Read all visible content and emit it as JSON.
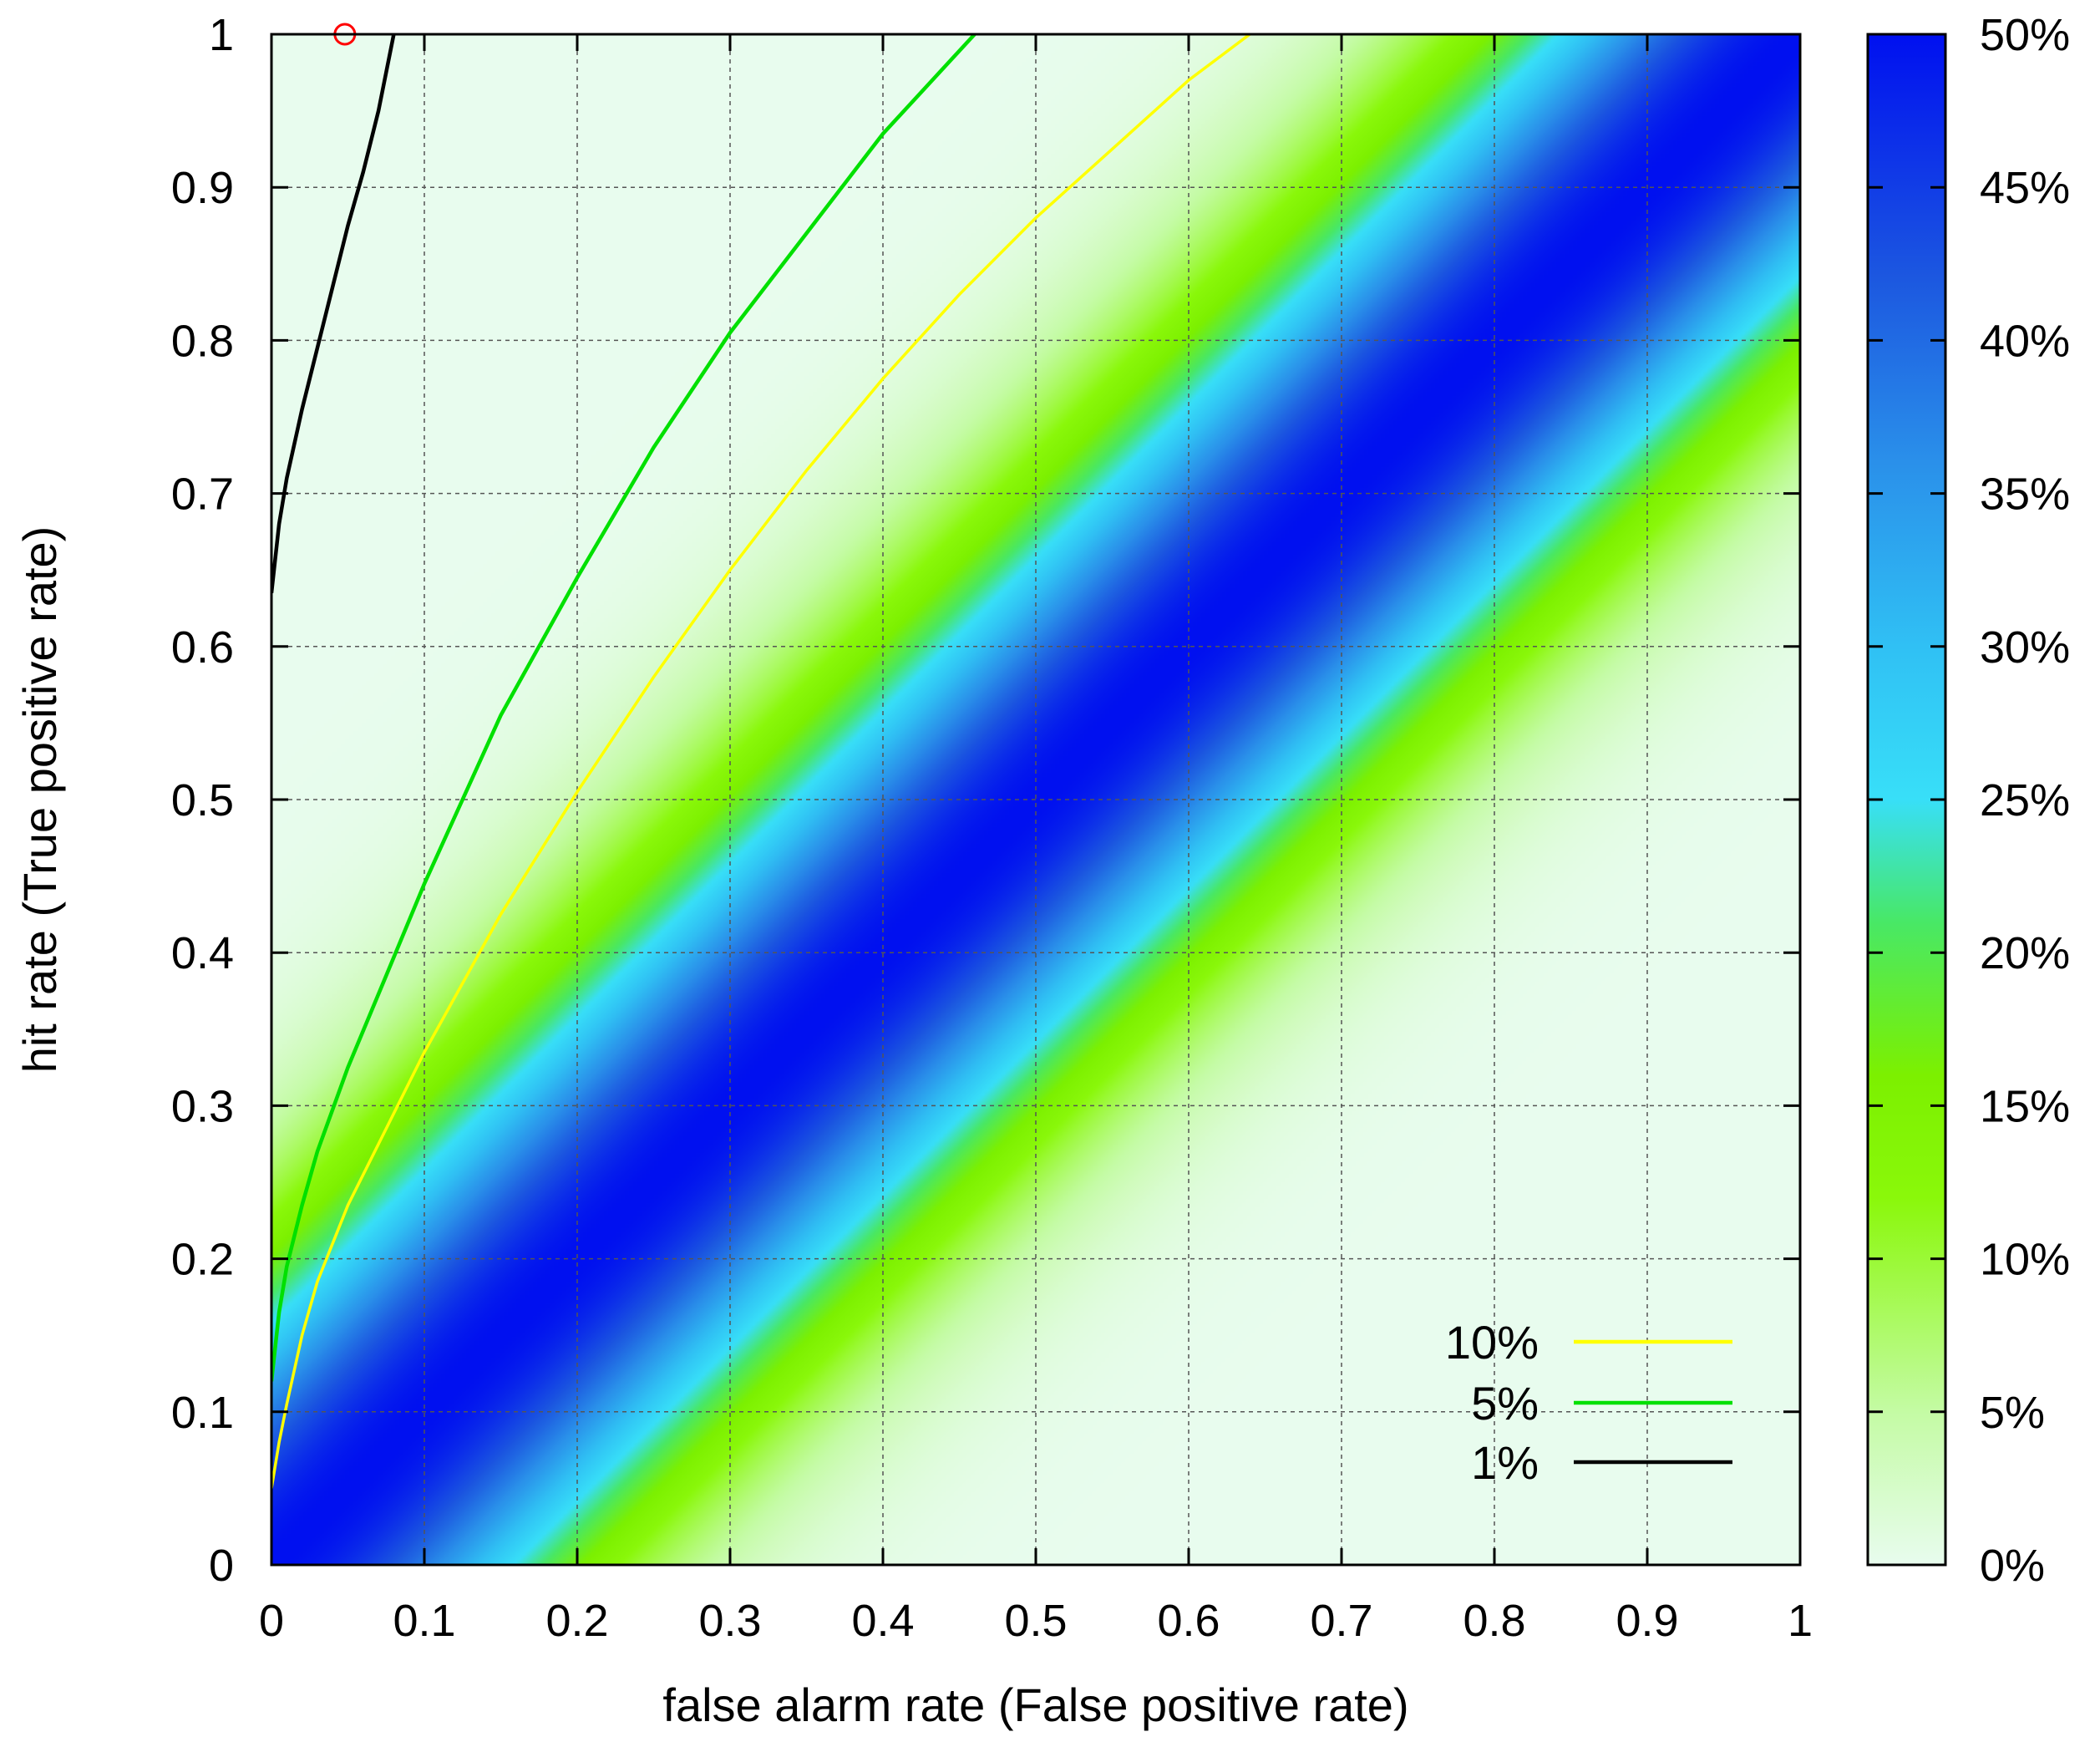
{
  "chart_data": {
    "type": "heatmap",
    "xlabel": "false alarm rate (False positive rate)",
    "ylabel": "hit rate (True positive rate)",
    "xlim": [
      0,
      1
    ],
    "ylim": [
      0,
      1
    ],
    "x_ticks": [
      "0",
      "0.1",
      "0.2",
      "0.3",
      "0.4",
      "0.5",
      "0.6",
      "0.7",
      "0.8",
      "0.9",
      "1"
    ],
    "y_ticks": [
      "0",
      "0.1",
      "0.2",
      "0.3",
      "0.4",
      "0.5",
      "0.6",
      "0.7",
      "0.8",
      "0.9",
      "1"
    ],
    "grid": true,
    "colorbar": {
      "range": [
        0,
        50
      ],
      "ticks": [
        "0%",
        "5%",
        "10%",
        "15%",
        "20%",
        "25%",
        "30%",
        "35%",
        "40%",
        "45%",
        "50%"
      ],
      "colors": [
        {
          "pos": 0.0,
          "color": "#e8fcee"
        },
        {
          "pos": 0.1,
          "color": "#c4fba4"
        },
        {
          "pos": 0.24,
          "color": "#8af80a"
        },
        {
          "pos": 0.32,
          "color": "#7cf000"
        },
        {
          "pos": 0.42,
          "color": "#48e866"
        },
        {
          "pos": 0.5,
          "color": "#38dff8"
        },
        {
          "pos": 0.6,
          "color": "#30c0f4"
        },
        {
          "pos": 0.72,
          "color": "#2a90ea"
        },
        {
          "pos": 0.84,
          "color": "#1c58e0"
        },
        {
          "pos": 1.0,
          "color": "#0010f0"
        }
      ]
    },
    "series": [
      {
        "name": "10%",
        "color": "#ffff00",
        "x": [
          0.0,
          0.005,
          0.01,
          0.02,
          0.03,
          0.05,
          0.075,
          0.1,
          0.15,
          0.2,
          0.25,
          0.3,
          0.35,
          0.4,
          0.45,
          0.5,
          0.55,
          0.6,
          0.64
        ],
        "y": [
          0.05,
          0.08,
          0.105,
          0.15,
          0.185,
          0.235,
          0.285,
          0.335,
          0.425,
          0.505,
          0.58,
          0.65,
          0.715,
          0.775,
          0.83,
          0.88,
          0.925,
          0.97,
          1.0
        ]
      },
      {
        "name": "5%",
        "color": "#00e000",
        "x": [
          0.0,
          0.005,
          0.01,
          0.02,
          0.03,
          0.05,
          0.075,
          0.1,
          0.15,
          0.2,
          0.25,
          0.3,
          0.35,
          0.4,
          0.46
        ],
        "y": [
          0.12,
          0.165,
          0.195,
          0.235,
          0.27,
          0.325,
          0.385,
          0.445,
          0.555,
          0.645,
          0.73,
          0.805,
          0.87,
          0.935,
          1.0
        ]
      },
      {
        "name": "1%",
        "color": "#000000",
        "x": [
          0.0,
          0.005,
          0.01,
          0.02,
          0.03,
          0.04,
          0.05,
          0.06,
          0.07,
          0.08
        ],
        "y": [
          0.635,
          0.68,
          0.71,
          0.755,
          0.795,
          0.835,
          0.875,
          0.91,
          0.95,
          1.0
        ]
      }
    ],
    "marker": {
      "x": 0.048,
      "y": 1.0,
      "color": "#ff0000",
      "shape": "circle"
    },
    "legend": {
      "placement": "bottom-right",
      "entries": [
        "10%",
        "5%",
        "1%"
      ]
    }
  }
}
